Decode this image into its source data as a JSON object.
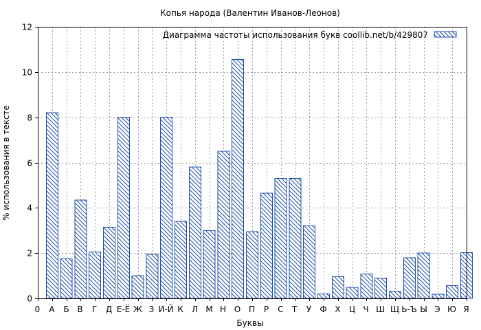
{
  "chart_data": {
    "type": "bar",
    "title": "Копья народа (Валентин Иванов-Леонов)",
    "xlabel": "Буквы",
    "ylabel": "% использования в тексте",
    "legend": {
      "text": "Диаграмма частоты использования букв  coollib.net/b/429807",
      "placement": "top-right"
    },
    "x_tick_labels": [
      "0",
      "А",
      "Б",
      "В",
      "Г",
      "Д",
      "Е-Ё",
      "Ж",
      "З",
      "И-Й",
      "К",
      "Л",
      "М",
      "Н",
      "О",
      "П",
      "Р",
      "С",
      "Т",
      "У",
      "Ф",
      "Х",
      "Ц",
      "Ч",
      "Ш",
      "Щ",
      "Ь-Ъ",
      "Ы",
      "Э",
      "Ю",
      "Я"
    ],
    "categories": [
      "А",
      "Б",
      "В",
      "Г",
      "Д",
      "Е-Ё",
      "Ж",
      "З",
      "И-Й",
      "К",
      "Л",
      "М",
      "Н",
      "О",
      "П",
      "Р",
      "С",
      "Т",
      "У",
      "Ф",
      "Х",
      "Ц",
      "Ч",
      "Ш",
      "Щ",
      "Ь-Ъ",
      "Ы",
      "Э",
      "Ю",
      "Я"
    ],
    "values": [
      8.2,
      1.75,
      4.35,
      2.05,
      3.15,
      8.0,
      1.0,
      1.95,
      8.0,
      3.4,
      5.8,
      3.0,
      6.5,
      10.55,
      2.95,
      4.65,
      5.3,
      5.3,
      3.2,
      0.2,
      0.95,
      0.48,
      1.08,
      0.9,
      0.32,
      1.8,
      2.0,
      0.18,
      0.56,
      2.02
    ],
    "yticks": [
      "0",
      "2",
      "4",
      "6",
      "8",
      "10",
      "12"
    ],
    "ylim": [
      0,
      12
    ],
    "grid": true,
    "colors": {
      "bar_stroke": "#1f4ea8",
      "hatch": "#1f4ea8",
      "grid": "#999999"
    }
  }
}
